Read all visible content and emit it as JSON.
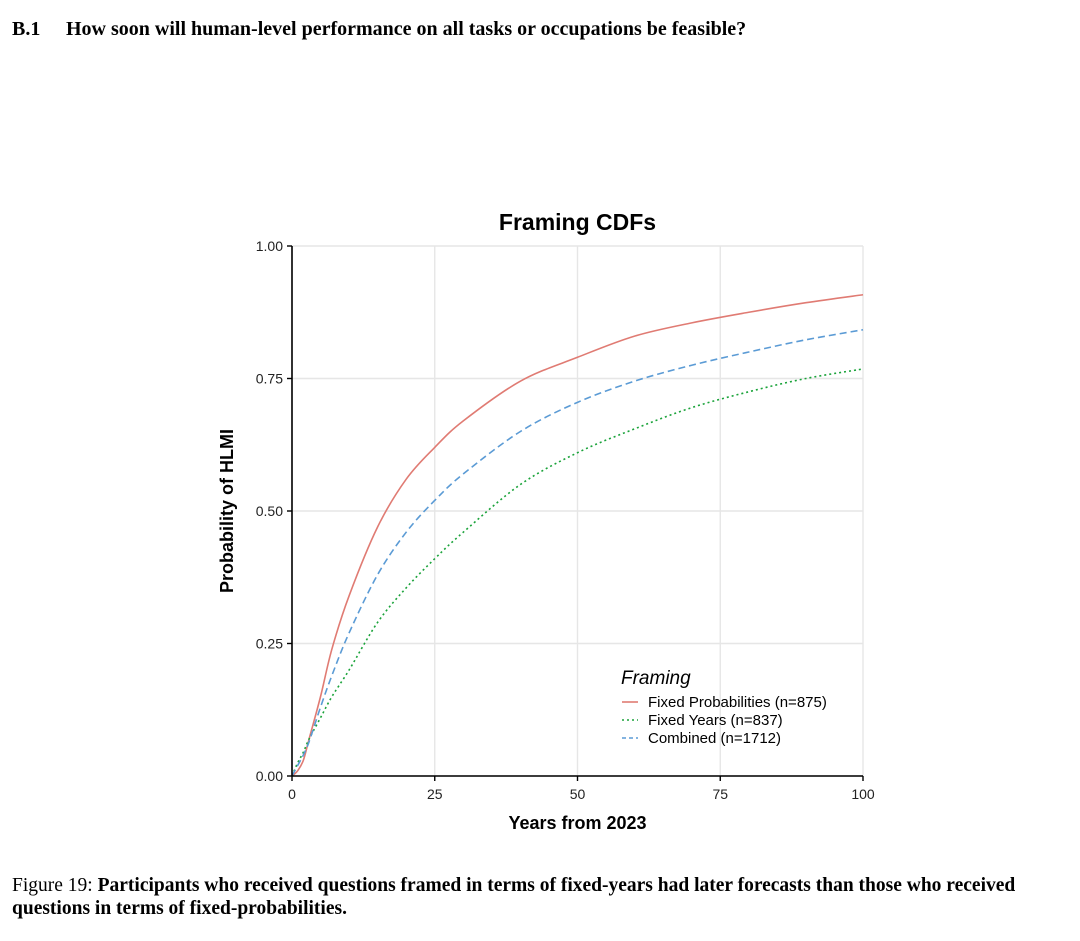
{
  "section": {
    "number": "B.1",
    "title": "How soon will human-level performance on all tasks or occupations be feasible?"
  },
  "caption": {
    "label": "Figure 19:",
    "text": "Participants who received questions framed in terms of fixed-years had later forecasts than those who received questions in terms of fixed-probabilities."
  },
  "chart_data": {
    "type": "line",
    "title": "Framing CDFs",
    "xlabel": "Years from 2023",
    "ylabel": "Probability of HLMI",
    "xlim": [
      0,
      100
    ],
    "ylim": [
      0,
      1
    ],
    "x_ticks": [
      0,
      25,
      50,
      75,
      100
    ],
    "x_tick_labels": [
      "0",
      "25",
      "50",
      "75",
      "100"
    ],
    "y_ticks": [
      0,
      0.25,
      0.5,
      0.75,
      1
    ],
    "y_tick_labels": [
      "0.00",
      "0.25",
      "0.50",
      "0.75",
      "1.00"
    ],
    "grid": true,
    "legend": {
      "title": "Framing",
      "placement": "bottom-right"
    },
    "series": [
      {
        "name": "Fixed Probabilities (n=875)",
        "color": "#e07b73",
        "style": "solid",
        "x": [
          0,
          1,
          2,
          3,
          5,
          7,
          10,
          15,
          20,
          25,
          30,
          40,
          50,
          60,
          70,
          80,
          90,
          100
        ],
        "y": [
          0,
          0.01,
          0.03,
          0.07,
          0.15,
          0.24,
          0.34,
          0.47,
          0.56,
          0.62,
          0.67,
          0.745,
          0.79,
          0.83,
          0.855,
          0.875,
          0.893,
          0.908
        ]
      },
      {
        "name": "Fixed Years (n=837)",
        "color": "#1aa33a",
        "style": "dotted",
        "x": [
          0,
          1,
          2,
          3,
          5,
          7,
          10,
          15,
          20,
          25,
          30,
          40,
          50,
          60,
          70,
          80,
          90,
          100
        ],
        "y": [
          0,
          0.025,
          0.045,
          0.07,
          0.11,
          0.15,
          0.2,
          0.29,
          0.355,
          0.41,
          0.46,
          0.55,
          0.61,
          0.655,
          0.695,
          0.725,
          0.75,
          0.768
        ]
      },
      {
        "name": "Combined (n=1712)",
        "color": "#5b9bd5",
        "style": "dashed",
        "x": [
          0,
          1,
          2,
          3,
          5,
          7,
          10,
          15,
          20,
          25,
          30,
          40,
          50,
          60,
          70,
          80,
          90,
          100
        ],
        "y": [
          0,
          0.02,
          0.04,
          0.065,
          0.13,
          0.19,
          0.27,
          0.38,
          0.46,
          0.52,
          0.57,
          0.65,
          0.705,
          0.745,
          0.775,
          0.8,
          0.823,
          0.842
        ]
      }
    ]
  }
}
